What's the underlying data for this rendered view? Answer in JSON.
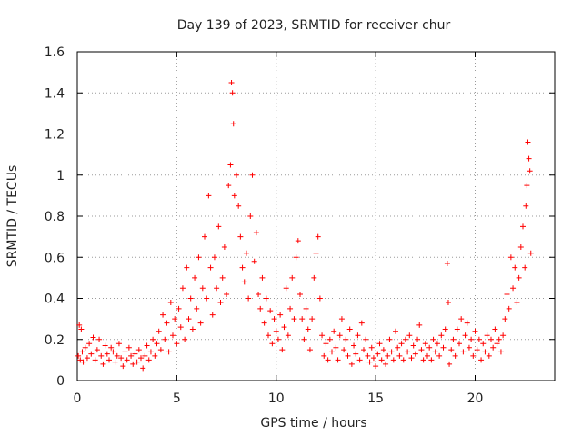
{
  "chart_data": {
    "type": "scatter",
    "title": "Day 139 of 2023, SRMTID for receiver chur",
    "xlabel": "GPS time / hours",
    "ylabel": "SRMTID / TECUs",
    "xlim": [
      0,
      24
    ],
    "ylim": [
      0,
      1.6
    ],
    "xticks": [
      0,
      5,
      10,
      15,
      20
    ],
    "xtick_labels": [
      "0",
      "5",
      "10",
      "15",
      "20"
    ],
    "yticks": [
      0,
      0.2,
      0.4,
      0.6,
      0.8,
      1,
      1.2,
      1.4,
      1.6
    ],
    "ytick_labels": [
      "0",
      "0.2",
      "0.4",
      "0.6",
      "0.8",
      "1",
      "1.2",
      "1.4",
      "1.6"
    ],
    "grid": true,
    "marker": "+",
    "series": [
      {
        "name": "SRMTID",
        "color": "#ff0000",
        "points": [
          [
            0.05,
            0.12
          ],
          [
            0.1,
            0.27
          ],
          [
            0.15,
            0.1
          ],
          [
            0.2,
            0.25
          ],
          [
            0.25,
            0.14
          ],
          [
            0.3,
            0.09
          ],
          [
            0.4,
            0.16
          ],
          [
            0.5,
            0.11
          ],
          [
            0.6,
            0.18
          ],
          [
            0.7,
            0.13
          ],
          [
            0.8,
            0.21
          ],
          [
            0.9,
            0.1
          ],
          [
            1.0,
            0.15
          ],
          [
            1.1,
            0.2
          ],
          [
            1.2,
            0.12
          ],
          [
            1.3,
            0.08
          ],
          [
            1.4,
            0.17
          ],
          [
            1.5,
            0.13
          ],
          [
            1.6,
            0.1
          ],
          [
            1.7,
            0.16
          ],
          [
            1.8,
            0.14
          ],
          [
            1.9,
            0.09
          ],
          [
            2.0,
            0.12
          ],
          [
            2.1,
            0.18
          ],
          [
            2.2,
            0.11
          ],
          [
            2.3,
            0.07
          ],
          [
            2.4,
            0.14
          ],
          [
            2.5,
            0.1
          ],
          [
            2.6,
            0.16
          ],
          [
            2.7,
            0.12
          ],
          [
            2.8,
            0.08
          ],
          [
            2.9,
            0.13
          ],
          [
            3.0,
            0.09
          ],
          [
            3.1,
            0.15
          ],
          [
            3.2,
            0.11
          ],
          [
            3.3,
            0.06
          ],
          [
            3.4,
            0.12
          ],
          [
            3.5,
            0.17
          ],
          [
            3.6,
            0.1
          ],
          [
            3.7,
            0.14
          ],
          [
            3.8,
            0.2
          ],
          [
            3.9,
            0.12
          ],
          [
            4.0,
            0.18
          ],
          [
            4.1,
            0.24
          ],
          [
            4.2,
            0.15
          ],
          [
            4.3,
            0.32
          ],
          [
            4.4,
            0.2
          ],
          [
            4.5,
            0.28
          ],
          [
            4.6,
            0.14
          ],
          [
            4.7,
            0.38
          ],
          [
            4.8,
            0.22
          ],
          [
            4.9,
            0.3
          ],
          [
            5.0,
            0.18
          ],
          [
            5.1,
            0.35
          ],
          [
            5.2,
            0.26
          ],
          [
            5.3,
            0.45
          ],
          [
            5.4,
            0.2
          ],
          [
            5.5,
            0.55
          ],
          [
            5.6,
            0.3
          ],
          [
            5.7,
            0.4
          ],
          [
            5.8,
            0.25
          ],
          [
            5.9,
            0.5
          ],
          [
            6.0,
            0.35
          ],
          [
            6.1,
            0.6
          ],
          [
            6.2,
            0.28
          ],
          [
            6.3,
            0.45
          ],
          [
            6.4,
            0.7
          ],
          [
            6.5,
            0.4
          ],
          [
            6.6,
            0.9
          ],
          [
            6.7,
            0.55
          ],
          [
            6.8,
            0.32
          ],
          [
            6.9,
            0.6
          ],
          [
            7.0,
            0.45
          ],
          [
            7.1,
            0.75
          ],
          [
            7.2,
            0.38
          ],
          [
            7.3,
            0.5
          ],
          [
            7.4,
            0.65
          ],
          [
            7.5,
            0.42
          ],
          [
            7.6,
            0.95
          ],
          [
            7.7,
            1.05
          ],
          [
            7.75,
            1.45
          ],
          [
            7.8,
            1.4
          ],
          [
            7.85,
            1.25
          ],
          [
            7.9,
            0.9
          ],
          [
            8.0,
            1.0
          ],
          [
            8.1,
            0.85
          ],
          [
            8.2,
            0.7
          ],
          [
            8.3,
            0.55
          ],
          [
            8.4,
            0.48
          ],
          [
            8.5,
            0.62
          ],
          [
            8.6,
            0.4
          ],
          [
            8.7,
            0.8
          ],
          [
            8.8,
            1.0
          ],
          [
            8.9,
            0.58
          ],
          [
            9.0,
            0.72
          ],
          [
            9.1,
            0.42
          ],
          [
            9.2,
            0.35
          ],
          [
            9.3,
            0.5
          ],
          [
            9.4,
            0.28
          ],
          [
            9.5,
            0.4
          ],
          [
            9.6,
            0.22
          ],
          [
            9.7,
            0.34
          ],
          [
            9.8,
            0.18
          ],
          [
            9.9,
            0.3
          ],
          [
            10.0,
            0.24
          ],
          [
            10.1,
            0.2
          ],
          [
            10.2,
            0.32
          ],
          [
            10.3,
            0.15
          ],
          [
            10.4,
            0.26
          ],
          [
            10.5,
            0.45
          ],
          [
            10.6,
            0.22
          ],
          [
            10.7,
            0.35
          ],
          [
            10.8,
            0.5
          ],
          [
            10.9,
            0.3
          ],
          [
            11.0,
            0.6
          ],
          [
            11.1,
            0.68
          ],
          [
            11.2,
            0.42
          ],
          [
            11.3,
            0.3
          ],
          [
            11.4,
            0.2
          ],
          [
            11.5,
            0.35
          ],
          [
            11.6,
            0.25
          ],
          [
            11.7,
            0.15
          ],
          [
            11.8,
            0.3
          ],
          [
            11.9,
            0.5
          ],
          [
            12.0,
            0.62
          ],
          [
            12.1,
            0.7
          ],
          [
            12.2,
            0.4
          ],
          [
            12.3,
            0.22
          ],
          [
            12.4,
            0.12
          ],
          [
            12.5,
            0.18
          ],
          [
            12.6,
            0.1
          ],
          [
            12.7,
            0.2
          ],
          [
            12.8,
            0.14
          ],
          [
            12.9,
            0.24
          ],
          [
            13.0,
            0.16
          ],
          [
            13.1,
            0.1
          ],
          [
            13.2,
            0.22
          ],
          [
            13.3,
            0.3
          ],
          [
            13.4,
            0.15
          ],
          [
            13.5,
            0.2
          ],
          [
            13.6,
            0.12
          ],
          [
            13.7,
            0.25
          ],
          [
            13.8,
            0.08
          ],
          [
            13.9,
            0.17
          ],
          [
            14.0,
            0.13
          ],
          [
            14.1,
            0.22
          ],
          [
            14.2,
            0.1
          ],
          [
            14.3,
            0.28
          ],
          [
            14.4,
            0.15
          ],
          [
            14.5,
            0.2
          ],
          [
            14.6,
            0.12
          ],
          [
            14.7,
            0.09
          ],
          [
            14.8,
            0.16
          ],
          [
            14.9,
            0.11
          ],
          [
            15.0,
            0.07
          ],
          [
            15.1,
            0.13
          ],
          [
            15.2,
            0.18
          ],
          [
            15.3,
            0.1
          ],
          [
            15.4,
            0.15
          ],
          [
            15.5,
            0.08
          ],
          [
            15.6,
            0.12
          ],
          [
            15.7,
            0.2
          ],
          [
            15.8,
            0.14
          ],
          [
            15.9,
            0.1
          ],
          [
            16.0,
            0.24
          ],
          [
            16.1,
            0.16
          ],
          [
            16.2,
            0.12
          ],
          [
            16.3,
            0.18
          ],
          [
            16.4,
            0.1
          ],
          [
            16.5,
            0.2
          ],
          [
            16.6,
            0.14
          ],
          [
            16.7,
            0.22
          ],
          [
            16.8,
            0.11
          ],
          [
            16.9,
            0.17
          ],
          [
            17.0,
            0.13
          ],
          [
            17.1,
            0.2
          ],
          [
            17.2,
            0.27
          ],
          [
            17.3,
            0.15
          ],
          [
            17.4,
            0.1
          ],
          [
            17.5,
            0.18
          ],
          [
            17.6,
            0.12
          ],
          [
            17.7,
            0.16
          ],
          [
            17.8,
            0.1
          ],
          [
            17.9,
            0.2
          ],
          [
            18.0,
            0.14
          ],
          [
            18.1,
            0.18
          ],
          [
            18.2,
            0.12
          ],
          [
            18.3,
            0.22
          ],
          [
            18.4,
            0.16
          ],
          [
            18.5,
            0.25
          ],
          [
            18.6,
            0.57
          ],
          [
            18.65,
            0.38
          ],
          [
            18.7,
            0.08
          ],
          [
            18.8,
            0.15
          ],
          [
            18.9,
            0.2
          ],
          [
            19.0,
            0.12
          ],
          [
            19.1,
            0.25
          ],
          [
            19.2,
            0.18
          ],
          [
            19.3,
            0.3
          ],
          [
            19.4,
            0.14
          ],
          [
            19.5,
            0.22
          ],
          [
            19.6,
            0.28
          ],
          [
            19.7,
            0.16
          ],
          [
            19.8,
            0.2
          ],
          [
            19.9,
            0.12
          ],
          [
            20.0,
            0.24
          ],
          [
            20.1,
            0.15
          ],
          [
            20.2,
            0.2
          ],
          [
            20.3,
            0.1
          ],
          [
            20.4,
            0.18
          ],
          [
            20.5,
            0.14
          ],
          [
            20.6,
            0.22
          ],
          [
            20.7,
            0.12
          ],
          [
            20.8,
            0.2
          ],
          [
            20.9,
            0.16
          ],
          [
            21.0,
            0.25
          ],
          [
            21.1,
            0.18
          ],
          [
            21.2,
            0.2
          ],
          [
            21.3,
            0.14
          ],
          [
            21.4,
            0.22
          ],
          [
            21.5,
            0.3
          ],
          [
            21.6,
            0.42
          ],
          [
            21.7,
            0.35
          ],
          [
            21.8,
            0.6
          ],
          [
            21.9,
            0.45
          ],
          [
            22.0,
            0.55
          ],
          [
            22.1,
            0.38
          ],
          [
            22.2,
            0.5
          ],
          [
            22.3,
            0.65
          ],
          [
            22.4,
            0.75
          ],
          [
            22.5,
            0.55
          ],
          [
            22.55,
            0.85
          ],
          [
            22.6,
            0.95
          ],
          [
            22.65,
            1.16
          ],
          [
            22.7,
            1.08
          ],
          [
            22.75,
            1.02
          ],
          [
            22.8,
            0.62
          ]
        ]
      }
    ]
  }
}
